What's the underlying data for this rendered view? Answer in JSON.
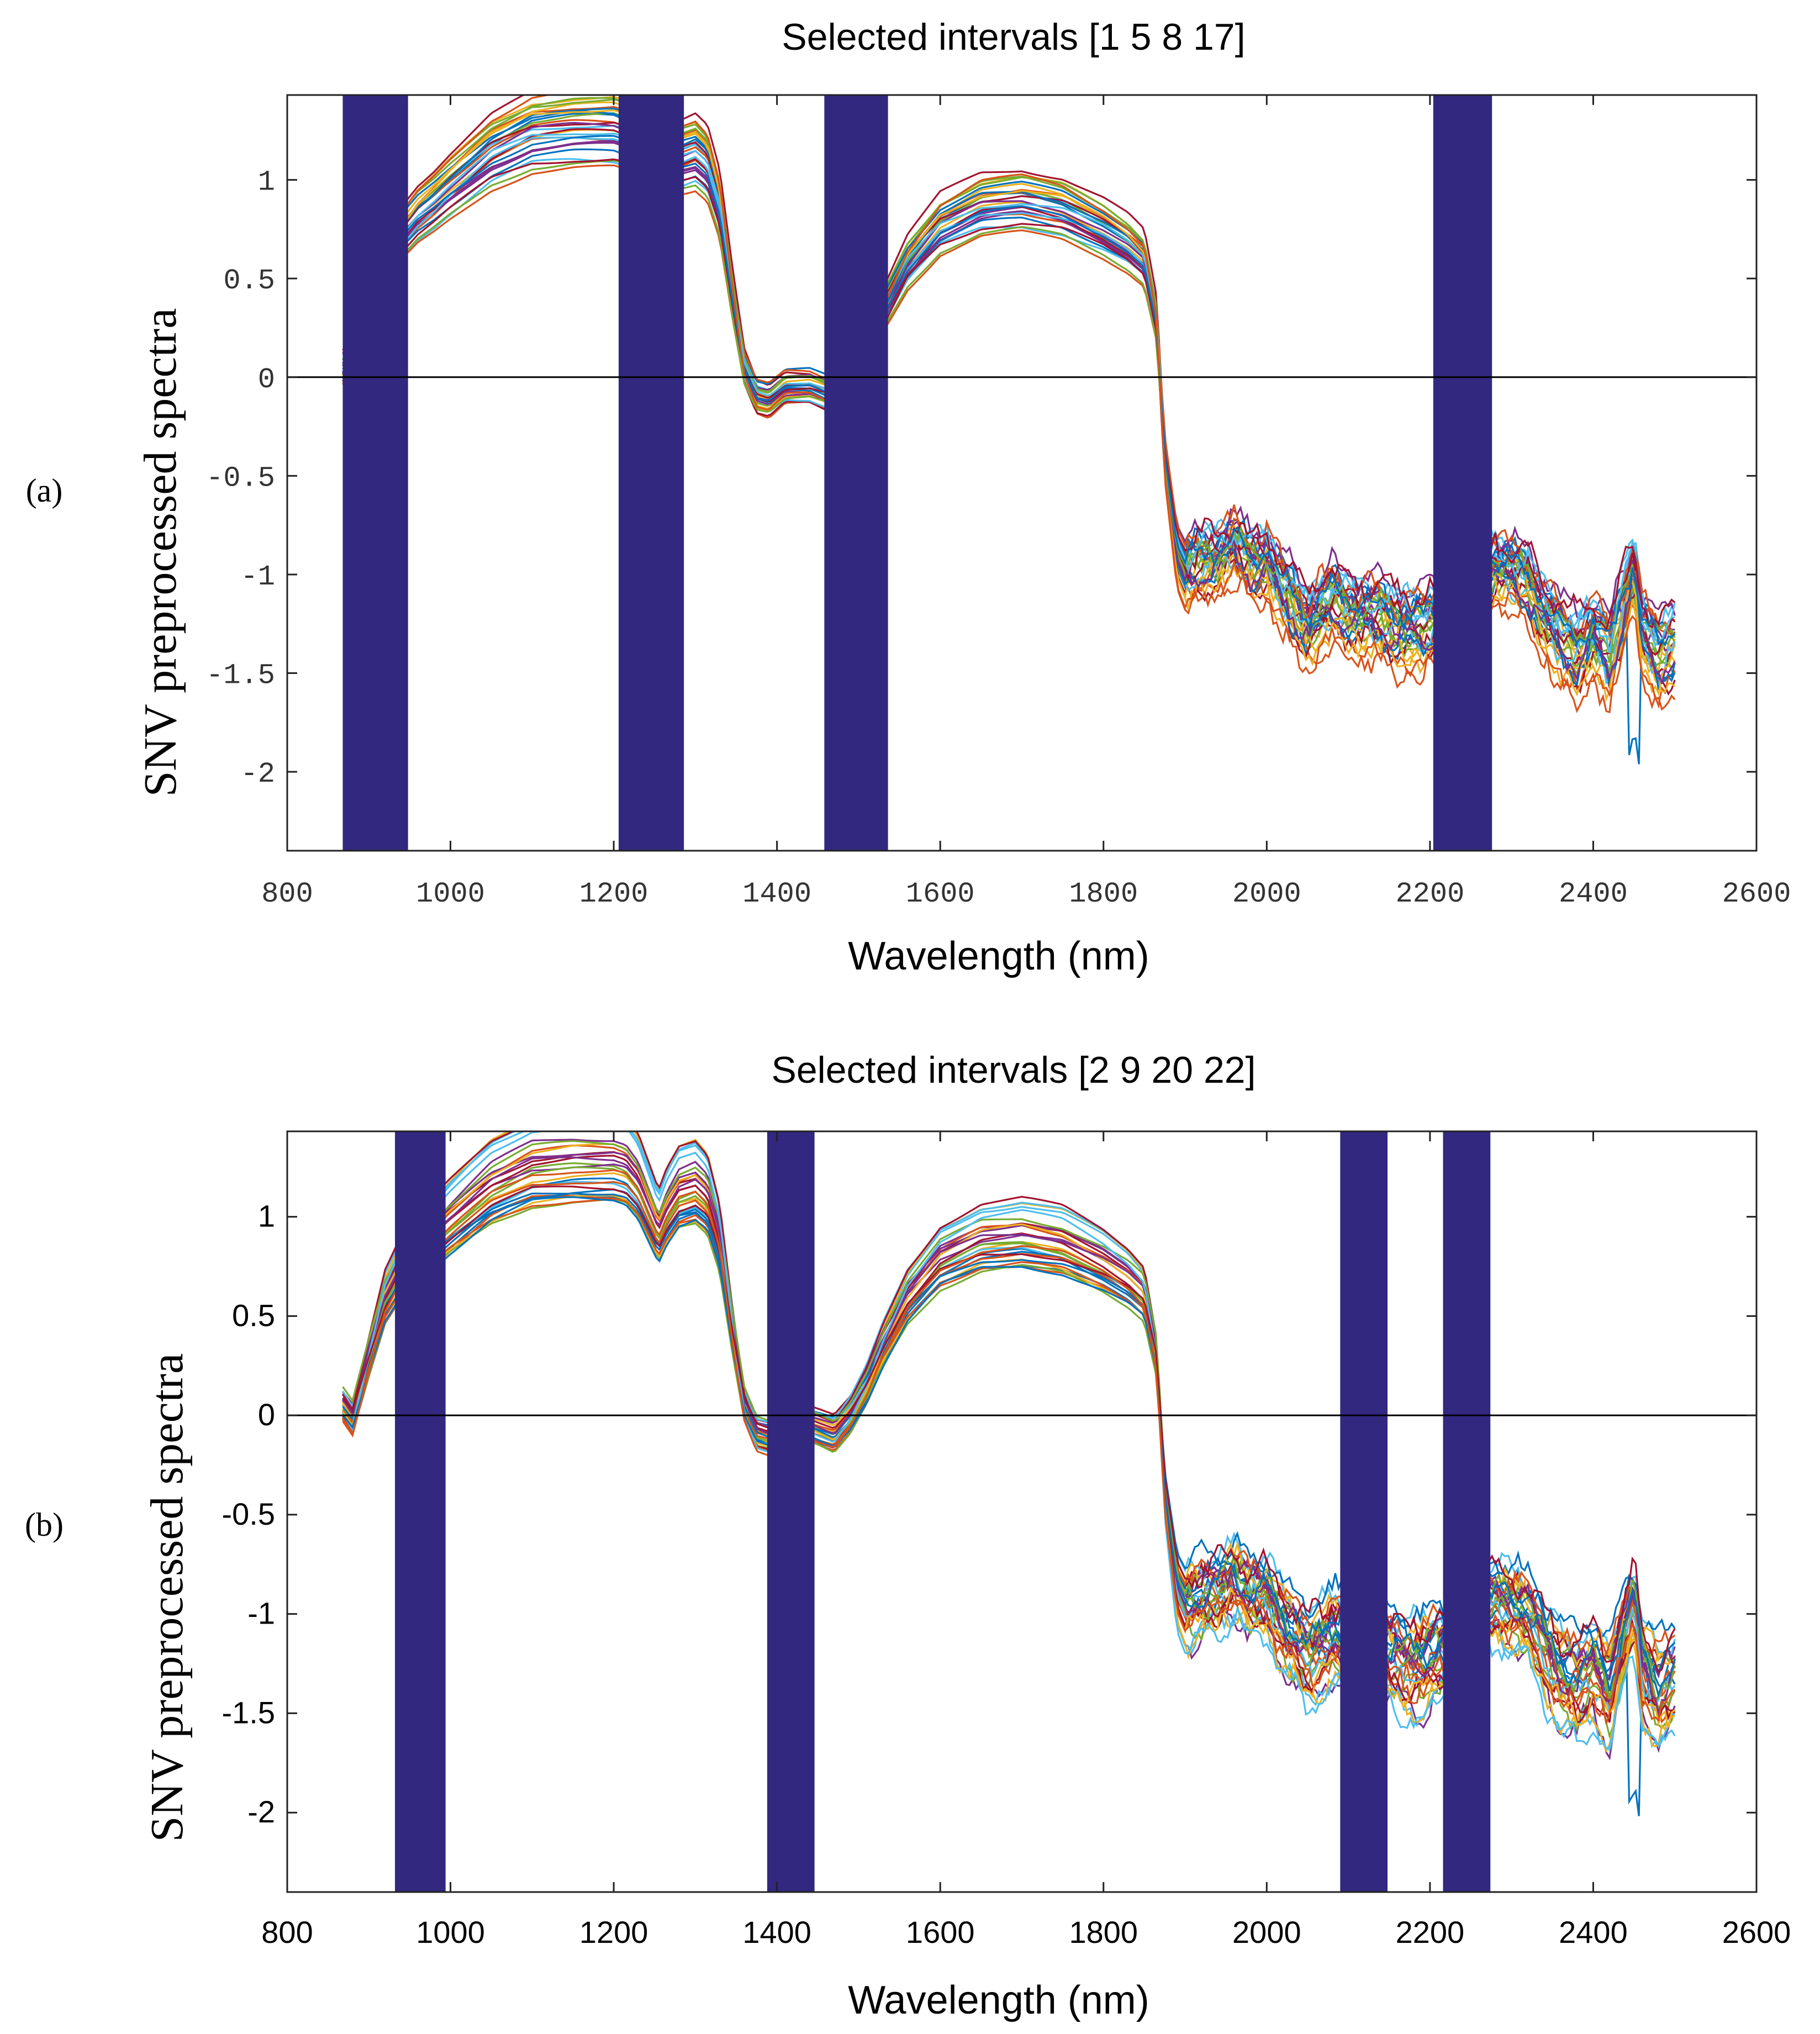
{
  "panel_labels": [
    "(a)",
    "(b)"
  ],
  "chart_data": [
    {
      "type": "line",
      "panel": "(a)",
      "title": "Selected intervals [1 5 8 17]",
      "xlabel": "Wavelength (nm)",
      "ylabel": "SNV preprocessed spectra",
      "xlim": [
        800,
        2600
      ],
      "ylim": [
        -2.4,
        1.43
      ],
      "xticks": [
        800,
        1000,
        1200,
        1400,
        1600,
        1800,
        2000,
        2200,
        2400,
        2600
      ],
      "xtick_labels": [
        "800",
        "1000",
        "1200",
        "1400",
        "1600",
        "1800",
        "2000",
        "2200",
        "2400",
        "2600"
      ],
      "yticks": [
        1,
        0.5,
        0,
        -0.5,
        -1,
        -1.5,
        -2
      ],
      "ytick_labels": [
        "1",
        "0.5",
        "0",
        "-0.5",
        "-1",
        "-1.5",
        "-2"
      ],
      "zero_line": true,
      "selected_intervals": [
        {
          "start": 868,
          "end": 948
        },
        {
          "start": 1206,
          "end": 1286
        },
        {
          "start": 1458,
          "end": 1536
        },
        {
          "start": 2204,
          "end": 2276
        }
      ],
      "spectra_count": 30,
      "spectra_wavelength_range": [
        868,
        2500
      ],
      "mean_spectrum": {
        "x": [
          868,
          880,
          900,
          920,
          940,
          960,
          980,
          1000,
          1050,
          1100,
          1150,
          1200,
          1215,
          1230,
          1245,
          1255,
          1265,
          1280,
          1300,
          1315,
          1330,
          1345,
          1360,
          1375,
          1390,
          1410,
          1440,
          1470,
          1490,
          1510,
          1530,
          1560,
          1600,
          1650,
          1700,
          1750,
          1800,
          1830,
          1850,
          1865,
          1875,
          1890,
          1900,
          1920,
          1940,
          1960,
          1980,
          2000,
          2020,
          2050,
          2080,
          2110,
          2150,
          2190,
          2220,
          2250,
          2280,
          2300,
          2320,
          2340,
          2360,
          2380,
          2400,
          2420,
          2440,
          2450,
          2460,
          2480,
          2500
        ],
        "y": [
          0.05,
          -0.02,
          0.3,
          0.6,
          0.75,
          0.85,
          0.92,
          1.0,
          1.18,
          1.28,
          1.3,
          1.3,
          1.28,
          1.2,
          1.05,
          0.95,
          1.05,
          1.15,
          1.18,
          1.12,
          0.9,
          0.45,
          0.05,
          -0.1,
          -0.12,
          -0.05,
          -0.05,
          -0.1,
          0.0,
          0.15,
          0.35,
          0.6,
          0.8,
          0.9,
          0.92,
          0.88,
          0.78,
          0.7,
          0.62,
          0.3,
          -0.4,
          -0.9,
          -1.0,
          -0.95,
          -0.9,
          -0.85,
          -0.95,
          -0.92,
          -1.1,
          -1.25,
          -1.15,
          -1.2,
          -1.25,
          -1.3,
          -1.2,
          -1.05,
          -0.95,
          -1.0,
          -1.05,
          -1.2,
          -1.35,
          -1.4,
          -1.3,
          -1.45,
          -1.1,
          -0.95,
          -1.3,
          -1.45,
          -1.35
        ]
      }
    },
    {
      "type": "line",
      "panel": "(b)",
      "title": "Selected intervals [2 9 20 22]",
      "xlabel": "Wavelength (nm)",
      "ylabel": "SNV preprocessed spectra",
      "xlim": [
        800,
        2600
      ],
      "ylim": [
        -2.4,
        1.43
      ],
      "xticks": [
        800,
        1000,
        1200,
        1400,
        1600,
        1800,
        2000,
        2200,
        2400,
        2600
      ],
      "xtick_labels": [
        "800",
        "1000",
        "1200",
        "1400",
        "1600",
        "1800",
        "2000",
        "2200",
        "2400",
        "2600"
      ],
      "yticks": [
        1,
        0.5,
        0,
        -0.5,
        -1,
        -1.5,
        -2
      ],
      "ytick_labels": [
        "1",
        "0.5",
        "0",
        "-0.5",
        "-1",
        "-1.5",
        "-2"
      ],
      "zero_line": true,
      "selected_intervals": [
        {
          "start": 932,
          "end": 994
        },
        {
          "start": 1388,
          "end": 1446
        },
        {
          "start": 2090,
          "end": 2148
        },
        {
          "start": 2216,
          "end": 2274
        }
      ],
      "spectra_count": 30,
      "spectra_wavelength_range": [
        868,
        2500
      ],
      "mean_spectrum": {
        "x": [
          868,
          880,
          900,
          920,
          940,
          960,
          980,
          1000,
          1050,
          1100,
          1150,
          1200,
          1215,
          1230,
          1245,
          1255,
          1265,
          1280,
          1300,
          1315,
          1330,
          1345,
          1360,
          1375,
          1390,
          1410,
          1440,
          1470,
          1490,
          1510,
          1530,
          1560,
          1600,
          1650,
          1700,
          1750,
          1800,
          1830,
          1850,
          1865,
          1875,
          1890,
          1900,
          1920,
          1940,
          1960,
          1980,
          2000,
          2020,
          2050,
          2080,
          2110,
          2150,
          2190,
          2220,
          2250,
          2280,
          2300,
          2320,
          2340,
          2360,
          2380,
          2400,
          2420,
          2440,
          2450,
          2460,
          2480,
          2500
        ],
        "y": [
          0.05,
          -0.02,
          0.3,
          0.6,
          0.75,
          0.85,
          0.92,
          1.0,
          1.18,
          1.28,
          1.3,
          1.3,
          1.28,
          1.2,
          1.05,
          0.95,
          1.05,
          1.15,
          1.18,
          1.12,
          0.9,
          0.45,
          0.05,
          -0.1,
          -0.12,
          -0.05,
          -0.05,
          -0.1,
          0.0,
          0.15,
          0.35,
          0.6,
          0.8,
          0.9,
          0.92,
          0.88,
          0.78,
          0.7,
          0.62,
          0.3,
          -0.4,
          -0.9,
          -1.0,
          -0.95,
          -0.9,
          -0.85,
          -0.95,
          -0.92,
          -1.1,
          -1.25,
          -1.15,
          -1.2,
          -1.25,
          -1.3,
          -1.2,
          -1.05,
          -0.95,
          -1.0,
          -1.05,
          -1.2,
          -1.35,
          -1.4,
          -1.3,
          -1.45,
          -1.1,
          -0.95,
          -1.3,
          -1.45,
          -1.35
        ]
      }
    }
  ],
  "colors": {
    "interval_fill": "#32287f",
    "axis": "#000000",
    "series_palette": [
      "#0072bd",
      "#d95319",
      "#edb120",
      "#7e2f8e",
      "#77ac30",
      "#4dbeee",
      "#a2142f"
    ]
  }
}
